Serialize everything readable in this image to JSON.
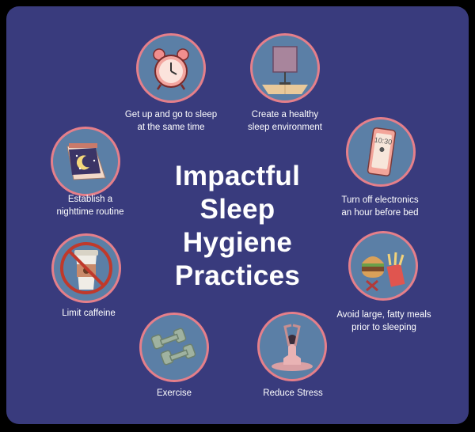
{
  "title": {
    "line1": "Impactful",
    "line2": "Sleep",
    "line3": "Hygiene",
    "line4": "Practices"
  },
  "practices": [
    {
      "icon": "alarm-clock-icon",
      "line1": "Get up and go to sleep",
      "line2": "at the same time"
    },
    {
      "icon": "bedroom-environment-icon",
      "line1": "Create a healthy",
      "line2": "sleep environment"
    },
    {
      "icon": "smartphone-icon",
      "line1": "Turn off electronics",
      "line2": "an hour before bed"
    },
    {
      "icon": "fast-food-icon",
      "line1": "Avoid large, fatty meals",
      "line2": "prior to sleeping"
    },
    {
      "icon": "meditation-icon",
      "line1": "Reduce Stress",
      "line2": ""
    },
    {
      "icon": "dumbbells-icon",
      "line1": "Exercise",
      "line2": ""
    },
    {
      "icon": "no-coffee-icon",
      "line1": "Limit caffeine",
      "line2": ""
    },
    {
      "icon": "night-calendar-icon",
      "line1": "Establish a",
      "line2": "nighttime routine"
    }
  ],
  "colors": {
    "background": "#393b7d",
    "circle_fill": "#5b7fa6",
    "circle_border": "#e57f8a",
    "text": "#ffffff"
  }
}
